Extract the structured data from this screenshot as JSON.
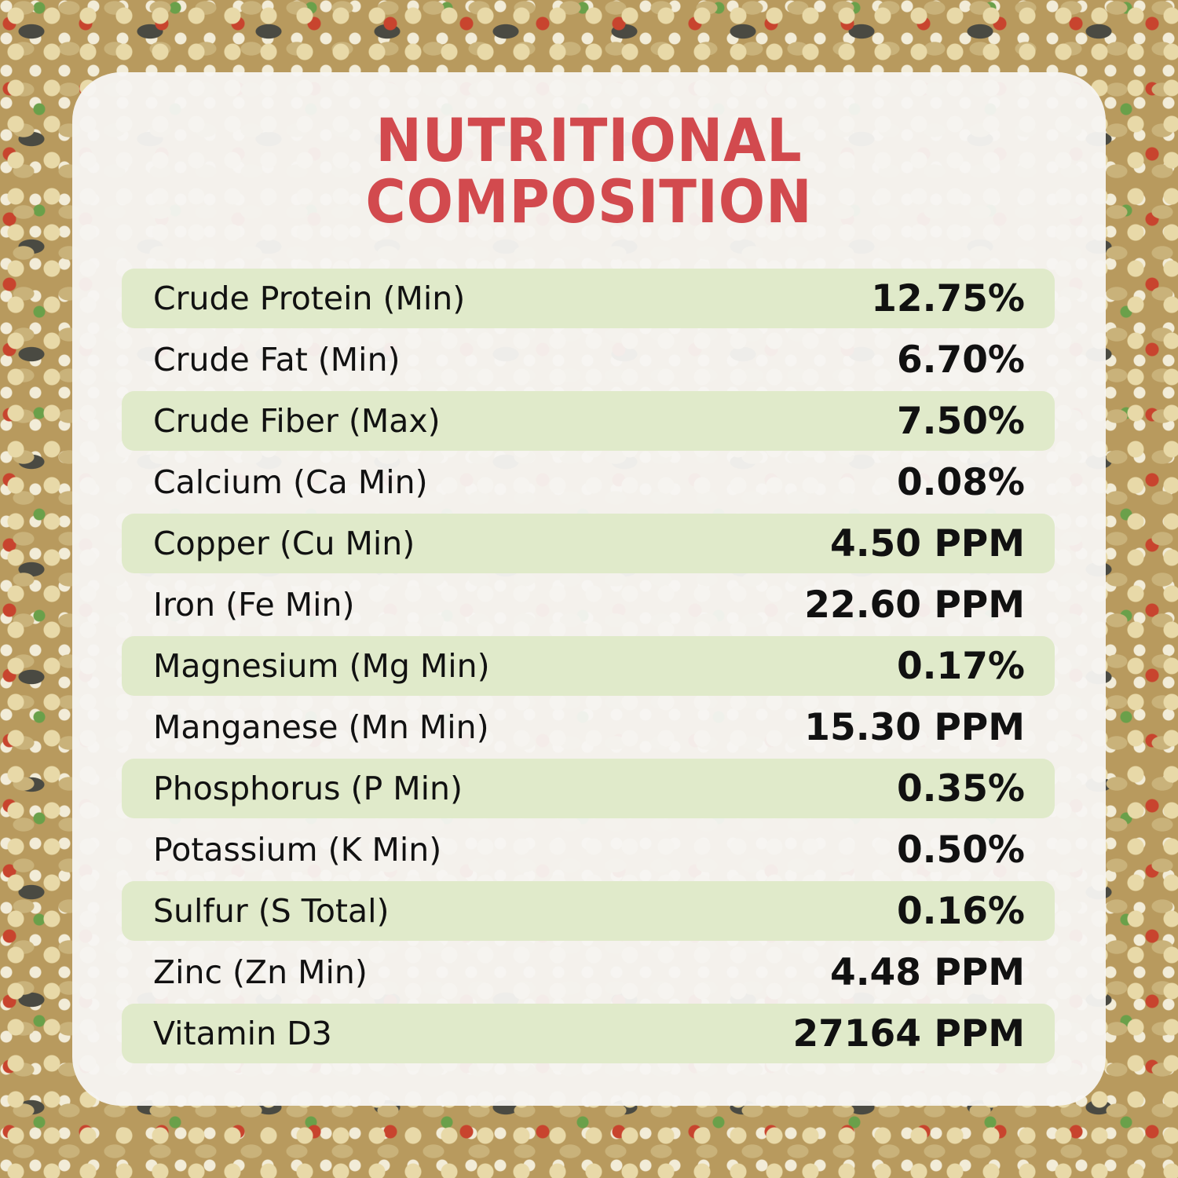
{
  "title_line1": "NUTRITIONAL",
  "title_line2": "COMPOSITION",
  "colors": {
    "title": "#d24a4e",
    "row_highlight": "#e0eaca"
  },
  "rows": [
    {
      "label": "Crude Protein (Min)",
      "value": "12.75%"
    },
    {
      "label": "Crude Fat (Min)",
      "value": "6.70%"
    },
    {
      "label": "Crude Fiber (Max)",
      "value": "7.50%"
    },
    {
      "label": "Calcium (Ca Min)",
      "value": "0.08%"
    },
    {
      "label": "Copper (Cu Min)",
      "value": "4.50 PPM"
    },
    {
      "label": "Iron (Fe Min)",
      "value": "22.60 PPM"
    },
    {
      "label": "Magnesium (Mg Min)",
      "value": "0.17%"
    },
    {
      "label": "Manganese (Mn Min)",
      "value": "15.30 PPM"
    },
    {
      "label": "Phosphorus (P Min)",
      "value": "0.35%"
    },
    {
      "label": "Potassium (K Min)",
      "value": "0.50%"
    },
    {
      "label": "Sulfur (S Total)",
      "value": "0.16%"
    },
    {
      "label": "Zinc (Zn Min)",
      "value": "4.48 PPM"
    },
    {
      "label": "Vitamin D3",
      "value": "27164 PPM"
    }
  ]
}
